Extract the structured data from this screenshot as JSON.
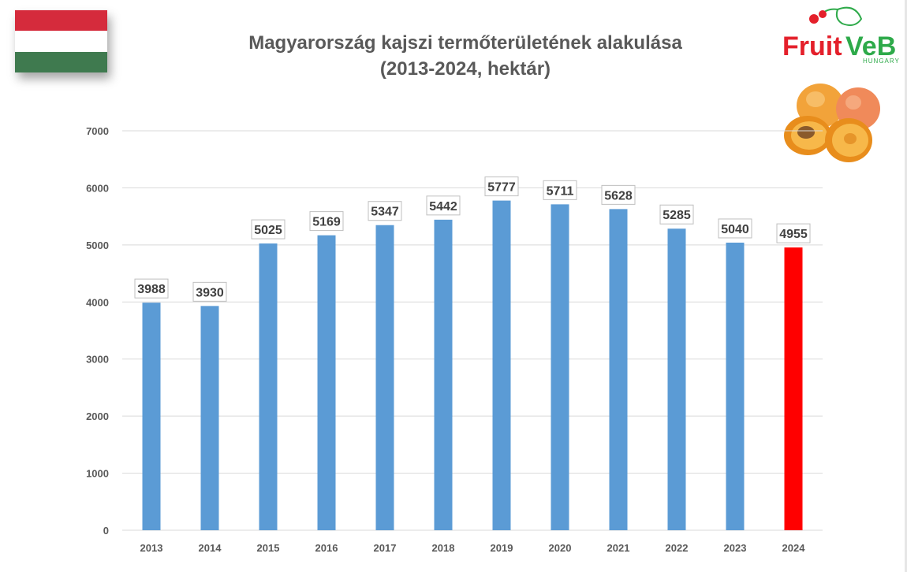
{
  "colors": {
    "flag_red": "#d52b3c",
    "flag_white": "#ffffff",
    "flag_green": "#3f7a4f",
    "bar_default": "#5b9bd5",
    "bar_highlight": "#ff0000",
    "grid": "#d9d9d9",
    "title": "#595959",
    "logo_red": "#e4202b",
    "logo_green": "#2eaa4a"
  },
  "header": {
    "title_line1": "Magyarország kajszi termőterületének alakulása",
    "title_line2": "(2013-2024, hektár)"
  },
  "logo": {
    "brand_text_fruit": "Fruit",
    "brand_text_veb": "VeB",
    "subtitle": "HUNGARY",
    "icon": "cherry-leaf-logo-icon",
    "illustration": "apricot-fruit-illustration"
  },
  "flag": {
    "icon": "hungary-flag-icon"
  },
  "chart_data": {
    "type": "bar",
    "title": "Magyarország kajszi termőterületének alakulása (2013-2024, hektár)",
    "xlabel": "",
    "ylabel": "",
    "ylim": [
      0,
      7000
    ],
    "yticks": [
      0,
      1000,
      2000,
      3000,
      4000,
      5000,
      6000,
      7000
    ],
    "grid": true,
    "legend": "none",
    "categories": [
      "2013",
      "2014",
      "2015",
      "2016",
      "2017",
      "2018",
      "2019",
      "2020",
      "2021",
      "2022",
      "2023",
      "2024"
    ],
    "values": [
      3988,
      3930,
      5025,
      5169,
      5347,
      5442,
      5777,
      5711,
      5628,
      5285,
      5040,
      4955
    ],
    "highlight_category": "2024"
  }
}
